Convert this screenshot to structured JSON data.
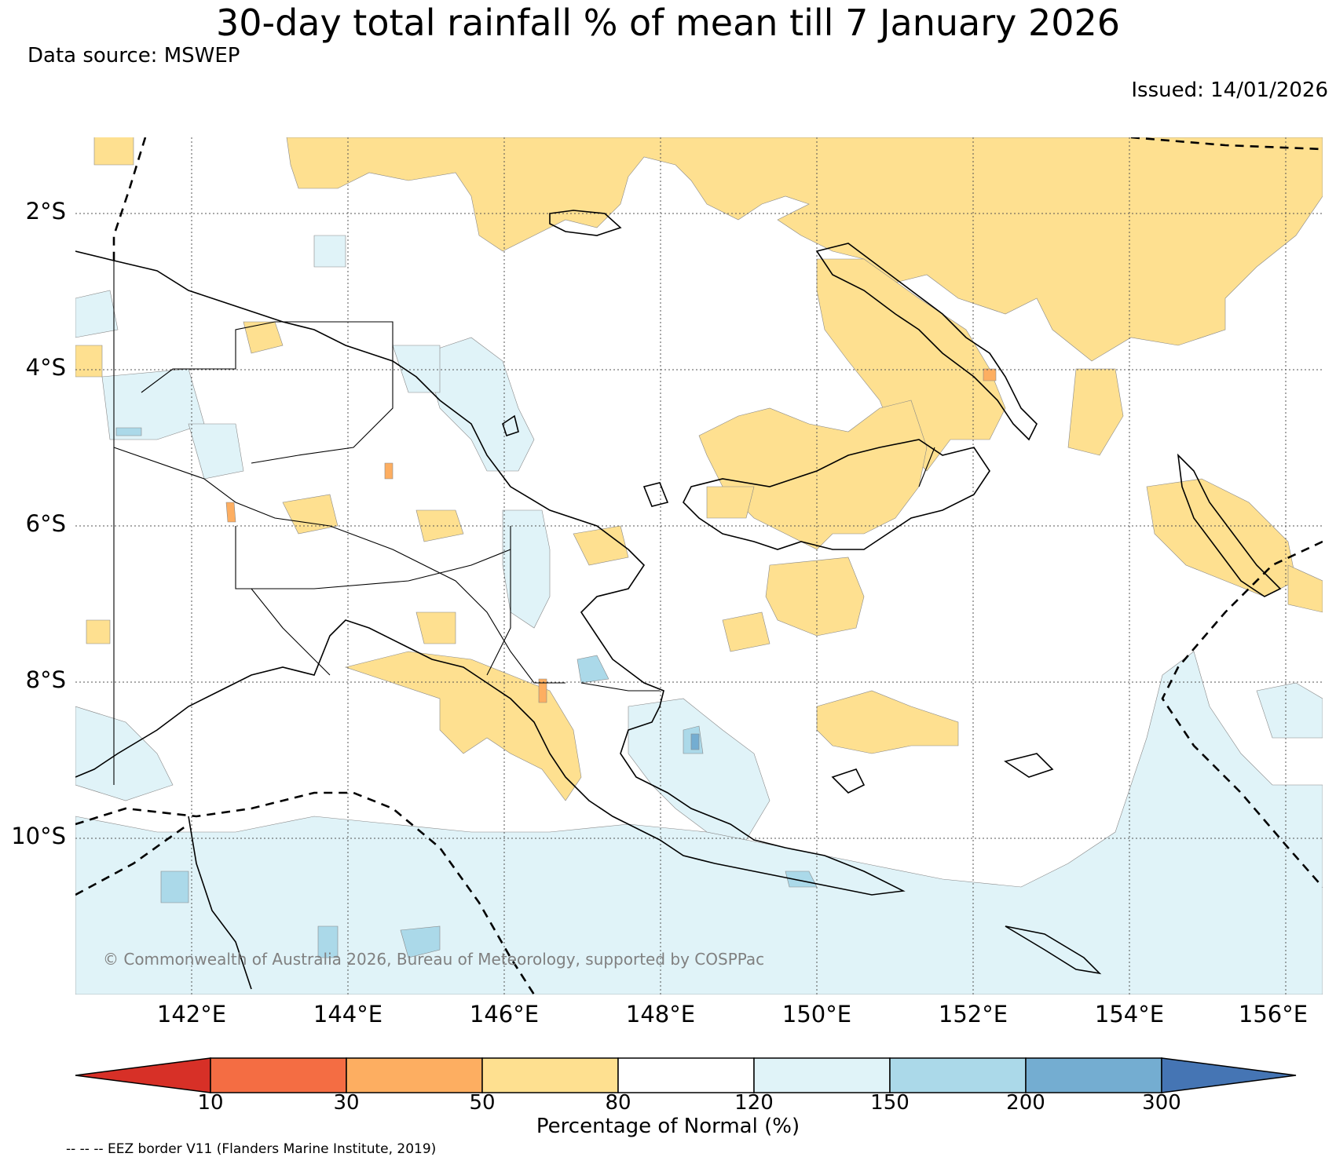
{
  "title": "30-day total rainfall % of mean till 7 January 2026",
  "data_source": "Data source: MSWEP",
  "issued": "Issued: 14/01/2026",
  "copyright": "© Commonwealth of Australia 2026, Bureau of Meteorology, supported by COSPPac",
  "latitude_labels": [
    "2°S",
    "4°S",
    "6°S",
    "8°S",
    "10°S"
  ],
  "longitude_labels": [
    "142°E",
    "144°E",
    "146°E",
    "148°E",
    "150°E",
    "152°E",
    "154°E",
    "156°E"
  ],
  "colorbar": {
    "label": "Percentage of Normal (%)",
    "ticks": [
      "10",
      "30",
      "50",
      "80",
      "120",
      "150",
      "200",
      "300"
    ],
    "colors": [
      "#d73027",
      "#f46d43",
      "#fdae61",
      "#fee090",
      "#ffffff",
      "#e0f3f8",
      "#abd9e9",
      "#74add1",
      "#4575b4"
    ]
  },
  "eez_note": "-- -- -- EEZ border V11 (Flanders Marine Institute, 2019)",
  "map_colors": {
    "dry": "#fee090",
    "very_dry": "#fdae61",
    "extremely_dry": "#f46d43",
    "wet": "#e0f3f8",
    "very_wet": "#abd9e9",
    "extremely_wet": "#74add1"
  }
}
